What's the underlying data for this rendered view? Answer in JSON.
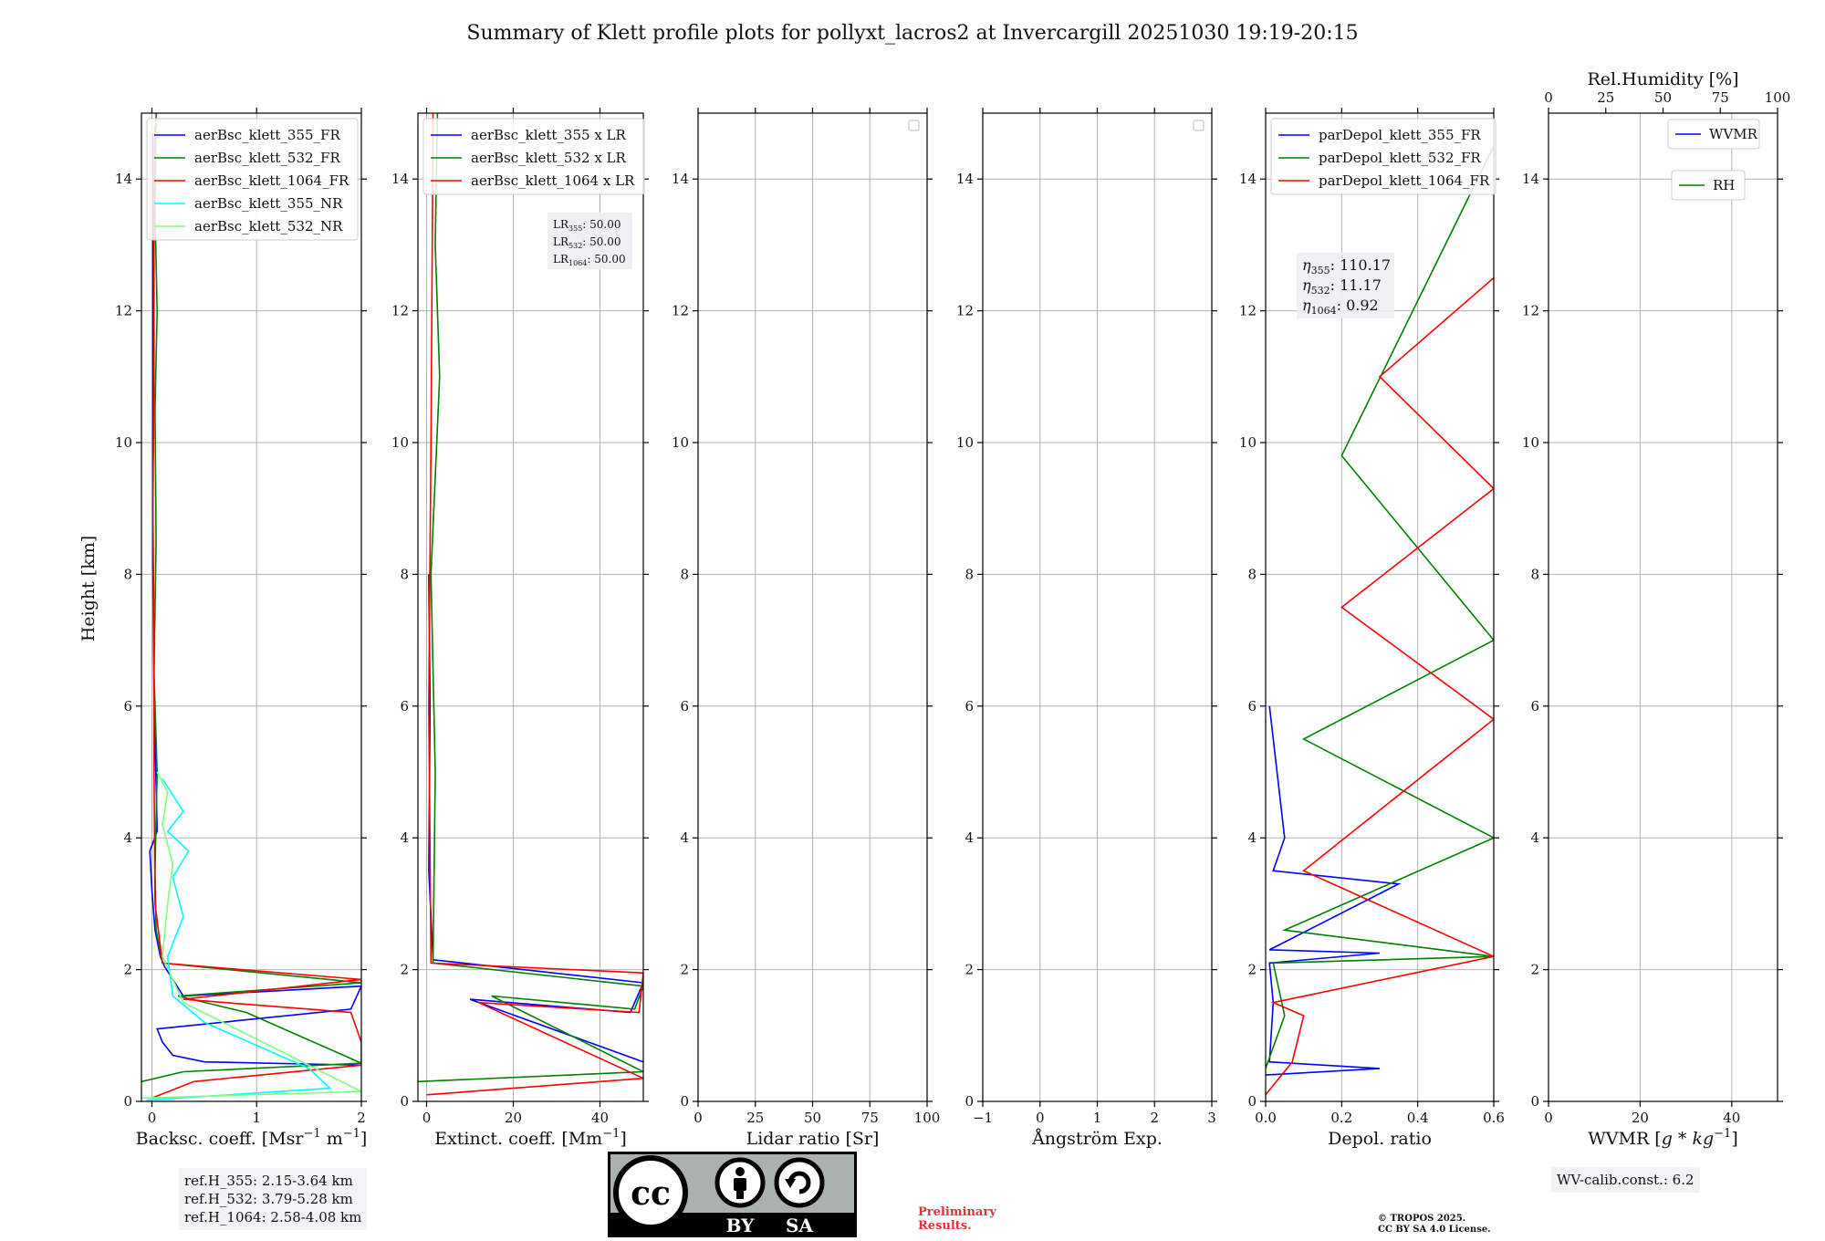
{
  "figure_title": "Summary of Klett profile plots for pollyxt_lacros2 at Invercargill 20251030 19:19-20:15",
  "y_axis": {
    "label": "Height [km]",
    "ylim": [
      0,
      15
    ],
    "ticks": [
      "0",
      "2",
      "4",
      "6",
      "8",
      "10",
      "12",
      "14"
    ]
  },
  "colors": {
    "blue": "#0000ff",
    "green": "#008000",
    "red": "#ff0000",
    "cyan": "#00ffff",
    "lightgreen": "#7fff7f",
    "grid": "#b0b0b0"
  },
  "panels": [
    {
      "id": "backscatter",
      "xlabel": "Backsc. coeff. [Msr$^{-1}$ m$^{-1}$]",
      "xlabel_text": "Backsc. coeff. [Msr",
      "xlabel_sup": "−1",
      "xlabel_mid": " m",
      "xlabel_sup2": "−1",
      "xlabel_end": "]",
      "xlim": [
        -0.1,
        2
      ],
      "xticks": [
        0,
        1,
        2
      ],
      "legend": [
        "aerBsc_klett_355_FR",
        "aerBsc_klett_532_FR",
        "aerBsc_klett_1064_FR",
        "aerBsc_klett_355_NR",
        "aerBsc_klett_532_NR"
      ]
    },
    {
      "id": "extinction",
      "xlabel_text": "Extinct. coeff. [Mm",
      "xlabel_sup": "−1",
      "xlabel_end": "]",
      "xlim": [
        -2,
        50
      ],
      "xticks": [
        0,
        20,
        40
      ],
      "legend": [
        "aerBsc_klett_355 x LR",
        "aerBsc_klett_532 x LR",
        "aerBsc_klett_1064 x LR"
      ],
      "lr_box": [
        {
          "sub": "355",
          "value": "50.00"
        },
        {
          "sub": "532",
          "value": "50.00"
        },
        {
          "sub": "1064",
          "value": "50.00"
        }
      ]
    },
    {
      "id": "lidar_ratio",
      "xlabel_text": "Lidar ratio [Sr]",
      "xlim": [
        0,
        100
      ],
      "xticks": [
        0,
        25,
        50,
        75,
        100
      ],
      "legend": []
    },
    {
      "id": "angstrom",
      "xlabel_text": "Ångström Exp.",
      "xlim": [
        -1,
        3
      ],
      "xticks": [
        -1,
        0,
        1,
        2,
        3
      ],
      "legend": []
    },
    {
      "id": "depol",
      "xlabel_text": "Depol. ratio",
      "xlim": [
        0,
        0.6
      ],
      "xticks": [
        "0.0",
        "0.2",
        "0.4",
        "0.6"
      ],
      "legend": [
        "parDepol_klett_355_FR",
        "parDepol_klett_532_FR",
        "parDepol_klett_1064_FR"
      ],
      "eta_box": [
        {
          "sub": "355",
          "value": "110.17"
        },
        {
          "sub": "532",
          "value": "11.17"
        },
        {
          "sub": "1064",
          "value": "0.92"
        }
      ]
    },
    {
      "id": "wvmr",
      "xlabel_text": "WVMR [",
      "xlabel_italic": "g * kg",
      "xlabel_sup": "−1",
      "xlabel_end": "]",
      "xlim": [
        0,
        50
      ],
      "xticks": [
        0,
        20,
        40
      ],
      "top_label": "Rel.Humidity [%]",
      "top_ticks": [
        0,
        25,
        50,
        75,
        100
      ],
      "legend": [
        "WVMR",
        "RH"
      ]
    }
  ],
  "chart_data": [
    {
      "type": "line",
      "title": "",
      "xlabel": "Backsc. coeff. [Msr-1 m-1]",
      "ylabel": "Height [km]",
      "xlim": [
        -0.1,
        2
      ],
      "ylim": [
        0,
        15
      ],
      "series": [
        {
          "name": "aerBsc_klett_355_FR",
          "color": "#0000ff",
          "x": [
            2,
            0.5,
            0.2,
            0.1,
            0.05,
            1.9,
            2,
            0.3,
            0.12,
            0.08,
            0.03,
            0,
            -0.02,
            0.05,
            0.04,
            0.02,
            0.01,
            0.01,
            0.01
          ],
          "y": [
            0.55,
            0.6,
            0.7,
            0.9,
            1.1,
            1.4,
            1.75,
            1.6,
            2.05,
            2.2,
            2.6,
            3.2,
            3.8,
            4.1,
            4.8,
            6.0,
            8.2,
            11,
            14.7
          ]
        },
        {
          "name": "aerBsc_klett_532_FR",
          "color": "#008000",
          "x": [
            -0.1,
            0.3,
            2,
            0.9,
            0.25,
            2,
            0.1,
            0.04,
            0.03,
            0.05,
            0.02,
            0.04,
            0.03,
            0.05,
            0.03,
            0.04
          ],
          "y": [
            0.3,
            0.45,
            0.58,
            1.35,
            1.6,
            1.8,
            2.1,
            2.6,
            3.5,
            5,
            6.5,
            8.5,
            10.5,
            12,
            13.5,
            15
          ]
        },
        {
          "name": "aerBsc_klett_1064_FR",
          "color": "#ff0000",
          "x": [
            0,
            0.4,
            2,
            2,
            1.9,
            0.3,
            2,
            0.1,
            0.03,
            0.02,
            0.02,
            0.01,
            0.02,
            0.02,
            0.03
          ],
          "y": [
            0.05,
            0.3,
            0.55,
            0.9,
            1.35,
            1.55,
            1.85,
            2.1,
            3,
            5,
            7,
            9,
            11,
            13,
            14.8
          ]
        },
        {
          "name": "aerBsc_klett_355_NR",
          "color": "#00ffff",
          "x": [
            -0.05,
            1.7,
            1.5,
            0.5,
            0.2,
            0.15,
            0.3,
            0.2,
            0.35,
            0.15,
            0.3,
            0.1
          ],
          "y": [
            0.02,
            0.2,
            0.5,
            1.2,
            1.6,
            2.2,
            2.8,
            3.4,
            3.8,
            4.1,
            4.4,
            4.9
          ]
        },
        {
          "name": "aerBsc_klett_532_NR",
          "color": "#7fff7f",
          "x": [
            -0.1,
            2,
            0.3,
            0.1,
            0.15,
            0.2,
            0.1,
            0.15,
            0.05
          ],
          "y": [
            0.05,
            0.15,
            1.5,
            2.2,
            3.0,
            3.6,
            4.2,
            4.7,
            5.0
          ]
        }
      ]
    },
    {
      "type": "line",
      "title": "",
      "xlabel": "Extinct. coeff. [Mm-1]",
      "ylabel": "",
      "xlim": [
        -2,
        50
      ],
      "ylim": [
        0,
        15
      ],
      "series": [
        {
          "name": "aerBsc_klett_355 x LR",
          "color": "#0000ff",
          "x": [
            50,
            10,
            47,
            50,
            1.5,
            0.5,
            0.8,
            0.5
          ],
          "y": [
            0.6,
            1.55,
            1.35,
            1.8,
            2.15,
            3.5,
            6,
            8
          ]
        },
        {
          "name": "aerBsc_klett_532 x LR",
          "color": "#008000",
          "x": [
            -2,
            50,
            15,
            48,
            50,
            1.5,
            2,
            1,
            3,
            2,
            2.5
          ],
          "y": [
            0.3,
            0.45,
            1.6,
            1.4,
            1.75,
            2.1,
            5,
            8,
            11,
            13,
            15
          ]
        },
        {
          "name": "aerBsc_klett_1064 x LR",
          "color": "#ff0000",
          "x": [
            0,
            50,
            12,
            49,
            50,
            1,
            0.5,
            1,
            1.5
          ],
          "y": [
            0.1,
            0.35,
            1.5,
            1.35,
            1.95,
            2.1,
            6,
            10,
            15
          ]
        }
      ]
    },
    {
      "type": "line",
      "title": "",
      "xlabel": "Lidar ratio [Sr]",
      "xlim": [
        0,
        100
      ],
      "ylim": [
        0,
        15
      ],
      "series": []
    },
    {
      "type": "line",
      "title": "",
      "xlabel": "Ångström Exp.",
      "xlim": [
        -1,
        3
      ],
      "ylim": [
        0,
        15
      ],
      "series": []
    },
    {
      "type": "line",
      "title": "",
      "xlabel": "Depol. ratio",
      "xlim": [
        0,
        0.6
      ],
      "ylim": [
        0,
        15
      ],
      "series": [
        {
          "name": "parDepol_klett_355_FR",
          "color": "#0000ff",
          "x": [
            0.0,
            0.3,
            0.01,
            0.02,
            0.01,
            0.3,
            0.01,
            0.35,
            0.02,
            0.05,
            0.01
          ],
          "y": [
            0.4,
            0.5,
            0.6,
            1.5,
            2.1,
            2.25,
            2.3,
            3.3,
            3.5,
            4.0,
            6
          ]
        },
        {
          "name": "parDepol_klett_532_FR",
          "color": "#008000",
          "x": [
            0.0,
            0.05,
            0.02,
            0.6,
            0.05,
            0.6,
            0.1,
            0.6,
            0.2,
            0.6
          ],
          "y": [
            0.5,
            1.3,
            2.1,
            2.2,
            2.6,
            4.0,
            5.5,
            7.0,
            9.8,
            14.5
          ]
        },
        {
          "name": "parDepol_klett_1064_FR",
          "color": "#ff0000",
          "x": [
            0.0,
            0.07,
            0.1,
            0.02,
            0.6,
            0.1,
            0.6,
            0.2,
            0.6,
            0.3,
            0.6
          ],
          "y": [
            0.1,
            0.6,
            1.3,
            1.5,
            2.2,
            3.5,
            5.8,
            7.5,
            9.3,
            11,
            12.5
          ]
        }
      ]
    },
    {
      "type": "line",
      "title": "",
      "xlabel": "WVMR [g*kg-1]",
      "xlim": [
        0,
        50
      ],
      "ylim": [
        0,
        15
      ],
      "series": [
        {
          "name": "WVMR",
          "color": "#0000ff",
          "x": [],
          "y": []
        },
        {
          "name": "RH",
          "color": "#008000",
          "x": [],
          "y": []
        }
      ]
    }
  ],
  "ref_heights": [
    "ref.H_355: 2.15-3.64 km",
    "ref.H_532: 3.79-5.28 km",
    "ref.H_1064: 2.58-4.08 km"
  ],
  "wv_calib": "WV-calib.const.: 6.2",
  "license_badge": {
    "cc": "cc",
    "by": "BY",
    "sa": "SA"
  },
  "preliminary": [
    "Preliminary",
    "Results."
  ],
  "copyright": [
    "© TROPOS 2025.",
    "CC BY SA 4.0 License."
  ]
}
